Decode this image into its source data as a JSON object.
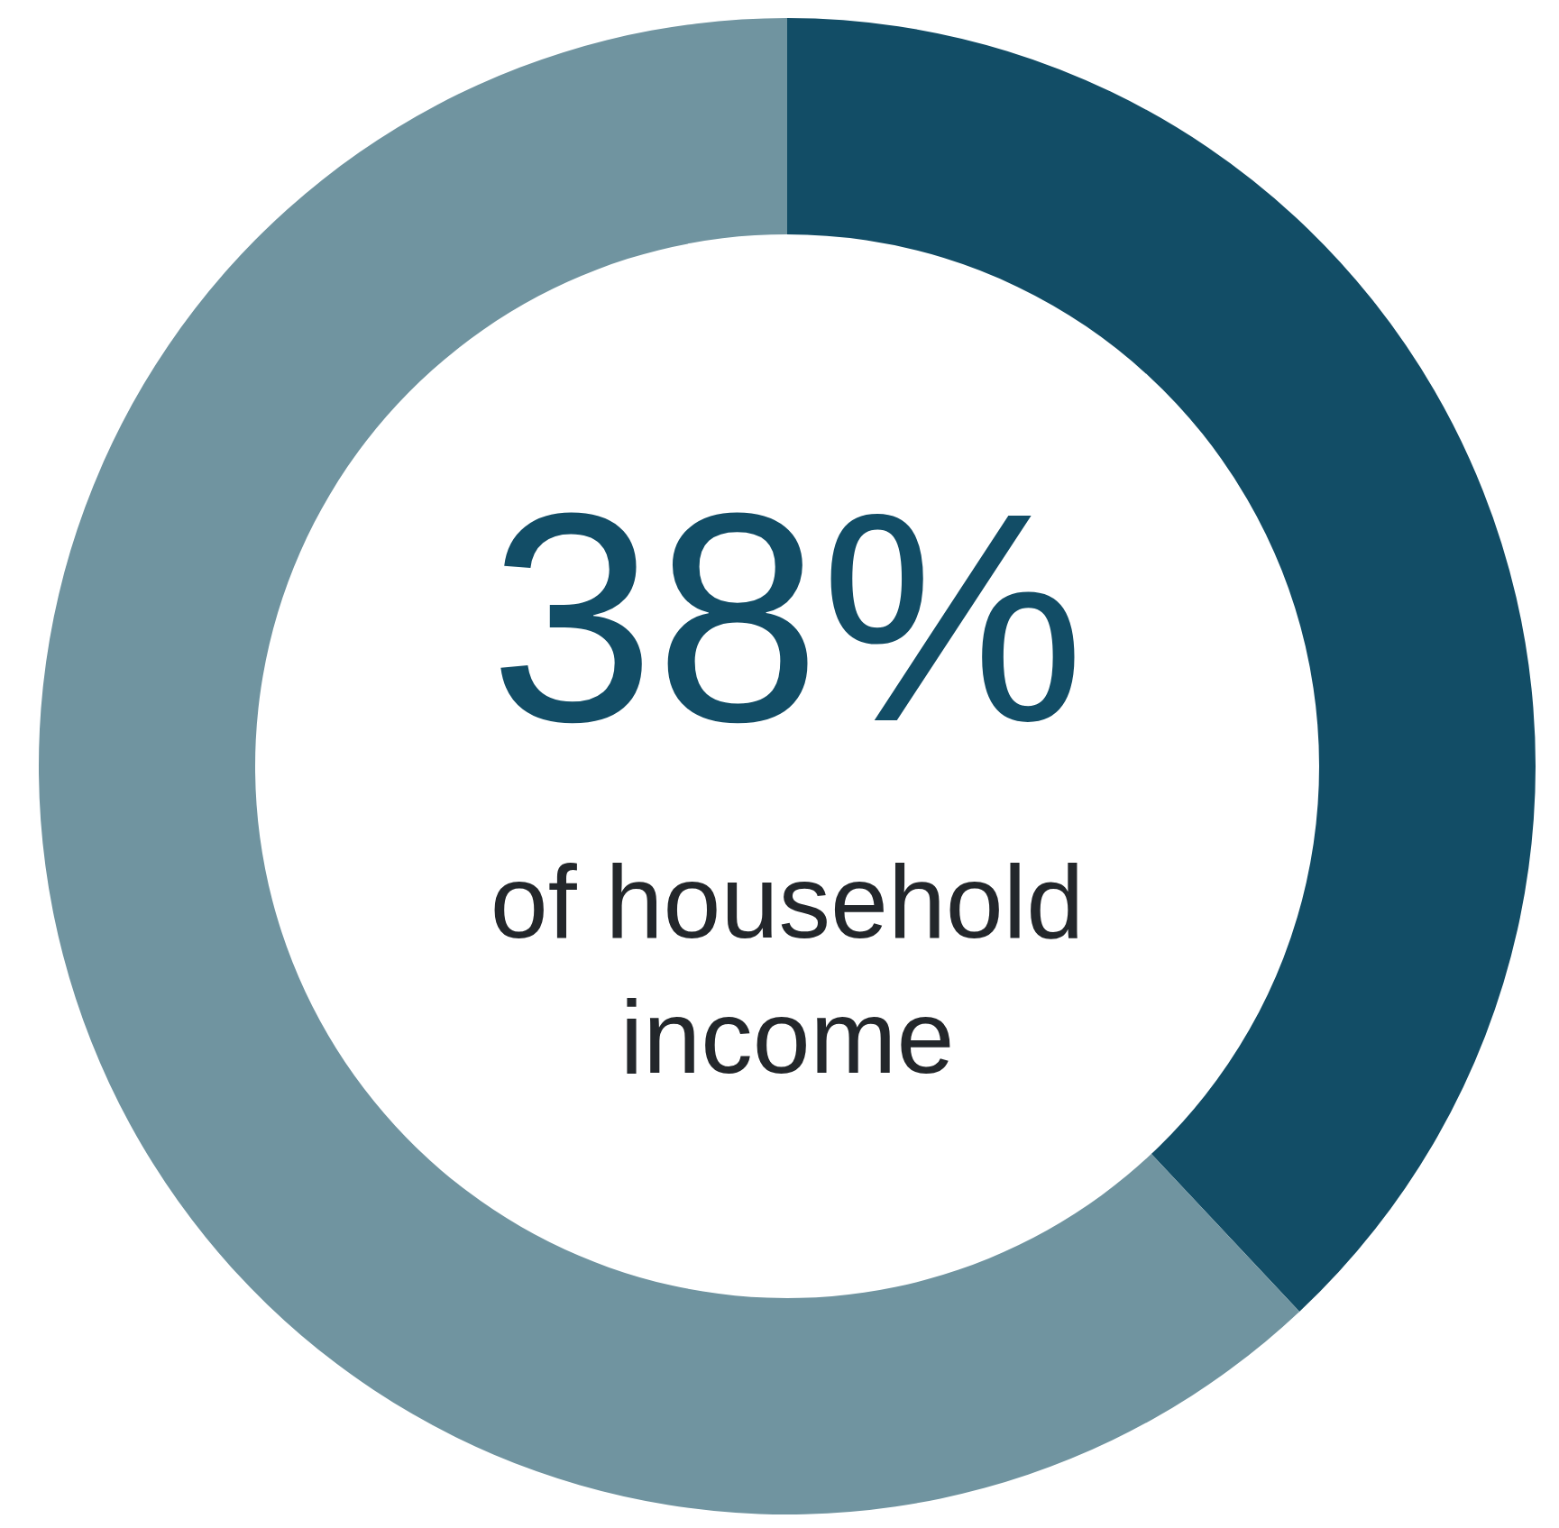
{
  "chart_data": {
    "type": "donut",
    "categories": [
      null,
      null
    ],
    "values": [
      38,
      62
    ],
    "colors": [
      "#124d66",
      "#7094a0"
    ],
    "annotations": [
      "38%",
      "of household income"
    ]
  }
}
